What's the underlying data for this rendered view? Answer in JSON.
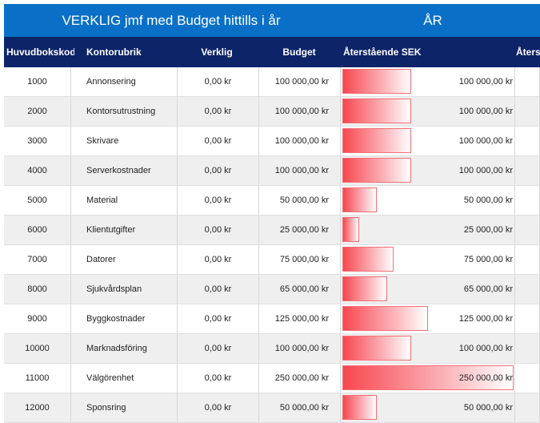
{
  "title": {
    "left": "VERKLIG jmf med Budget hittills i år",
    "right": "ÅR"
  },
  "columns": {
    "code": "Huvudbokskod",
    "rubrik": "Kontorubrik",
    "verklig": "Verklig",
    "budget": "Budget",
    "remaining": "Återstående SEK",
    "extra": "Åters"
  },
  "rows": [
    {
      "code": "1000",
      "rubrik": "Annonsering",
      "verklig": "0,00 kr",
      "budget": "100 000,00 kr",
      "remaining": "100 000,00 kr",
      "remaining_value": 100000
    },
    {
      "code": "2000",
      "rubrik": "Kontorsutrustning",
      "verklig": "0,00 kr",
      "budget": "100 000,00 kr",
      "remaining": "100 000,00 kr",
      "remaining_value": 100000
    },
    {
      "code": "3000",
      "rubrik": "Skrivare",
      "verklig": "0,00 kr",
      "budget": "100 000,00 kr",
      "remaining": "100 000,00 kr",
      "remaining_value": 100000
    },
    {
      "code": "4000",
      "rubrik": "Serverkostnader",
      "verklig": "0,00 kr",
      "budget": "100 000,00 kr",
      "remaining": "100 000,00 kr",
      "remaining_value": 100000
    },
    {
      "code": "5000",
      "rubrik": "Material",
      "verklig": "0,00 kr",
      "budget": "50 000,00 kr",
      "remaining": "50 000,00 kr",
      "remaining_value": 50000
    },
    {
      "code": "6000",
      "rubrik": "Klientutgifter",
      "verklig": "0,00 kr",
      "budget": "25 000,00 kr",
      "remaining": "25 000,00 kr",
      "remaining_value": 25000
    },
    {
      "code": "7000",
      "rubrik": "Datorer",
      "verklig": "0,00 kr",
      "budget": "75 000,00 kr",
      "remaining": "75 000,00 kr",
      "remaining_value": 75000
    },
    {
      "code": "8000",
      "rubrik": "Sjukvårdsplan",
      "verklig": "0,00 kr",
      "budget": "65 000,00 kr",
      "remaining": "65 000,00 kr",
      "remaining_value": 65000
    },
    {
      "code": "9000",
      "rubrik": "Byggkostnader",
      "verklig": "0,00 kr",
      "budget": "125 000,00 kr",
      "remaining": "125 000,00 kr",
      "remaining_value": 125000
    },
    {
      "code": "10000",
      "rubrik": "Marknadsföring",
      "verklig": "0,00 kr",
      "budget": "100 000,00 kr",
      "remaining": "100 000,00 kr",
      "remaining_value": 100000
    },
    {
      "code": "11000",
      "rubrik": "Välgörenhet",
      "verklig": "0,00 kr",
      "budget": "250 000,00 kr",
      "remaining": "250 000,00 kr",
      "remaining_value": 250000
    },
    {
      "code": "12000",
      "rubrik": "Sponsring",
      "verklig": "0,00 kr",
      "budget": "50 000,00 kr",
      "remaining": "50 000,00 kr",
      "remaining_value": 50000
    }
  ],
  "colors": {
    "title_band": "#0a70c7",
    "header_band": "#0d2469",
    "bar_fill": "#f7474f",
    "row_alt": "#efefef"
  }
}
